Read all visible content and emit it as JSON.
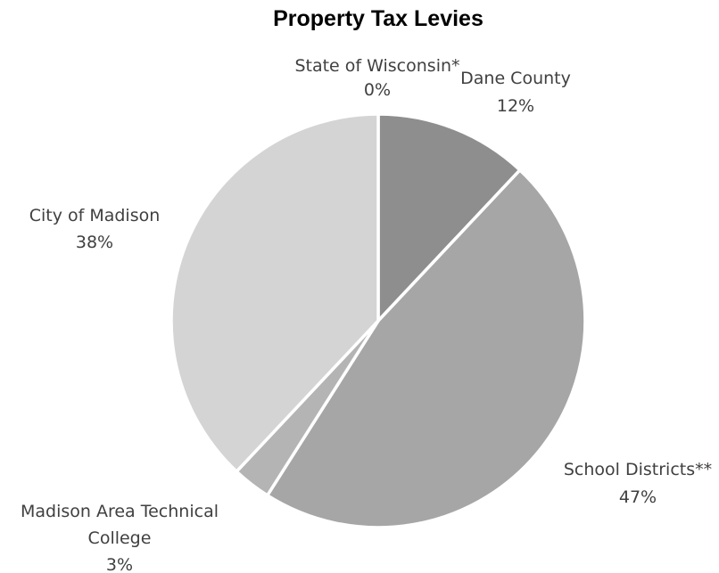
{
  "chart_data": {
    "type": "pie",
    "title": "Property Tax Levies",
    "start_angle_deg": 0,
    "direction": "clockwise",
    "legend": "none",
    "slices": [
      {
        "label": "State of Wisconsin*",
        "value": 0,
        "pct_label": "0%",
        "color": "#bfbfbf"
      },
      {
        "label": "Dane County",
        "value": 12,
        "pct_label": "12%",
        "color": "#8e8e8e"
      },
      {
        "label": "School Districts**",
        "value": 47,
        "pct_label": "47%",
        "color": "#a6a6a6"
      },
      {
        "label": "Madison Area Technical College",
        "value": 3,
        "pct_label": "3%",
        "color": "#b4b4b4"
      },
      {
        "label": "City of Madison",
        "value": 38,
        "pct_label": "38%",
        "color": "#d4d4d4"
      }
    ]
  }
}
